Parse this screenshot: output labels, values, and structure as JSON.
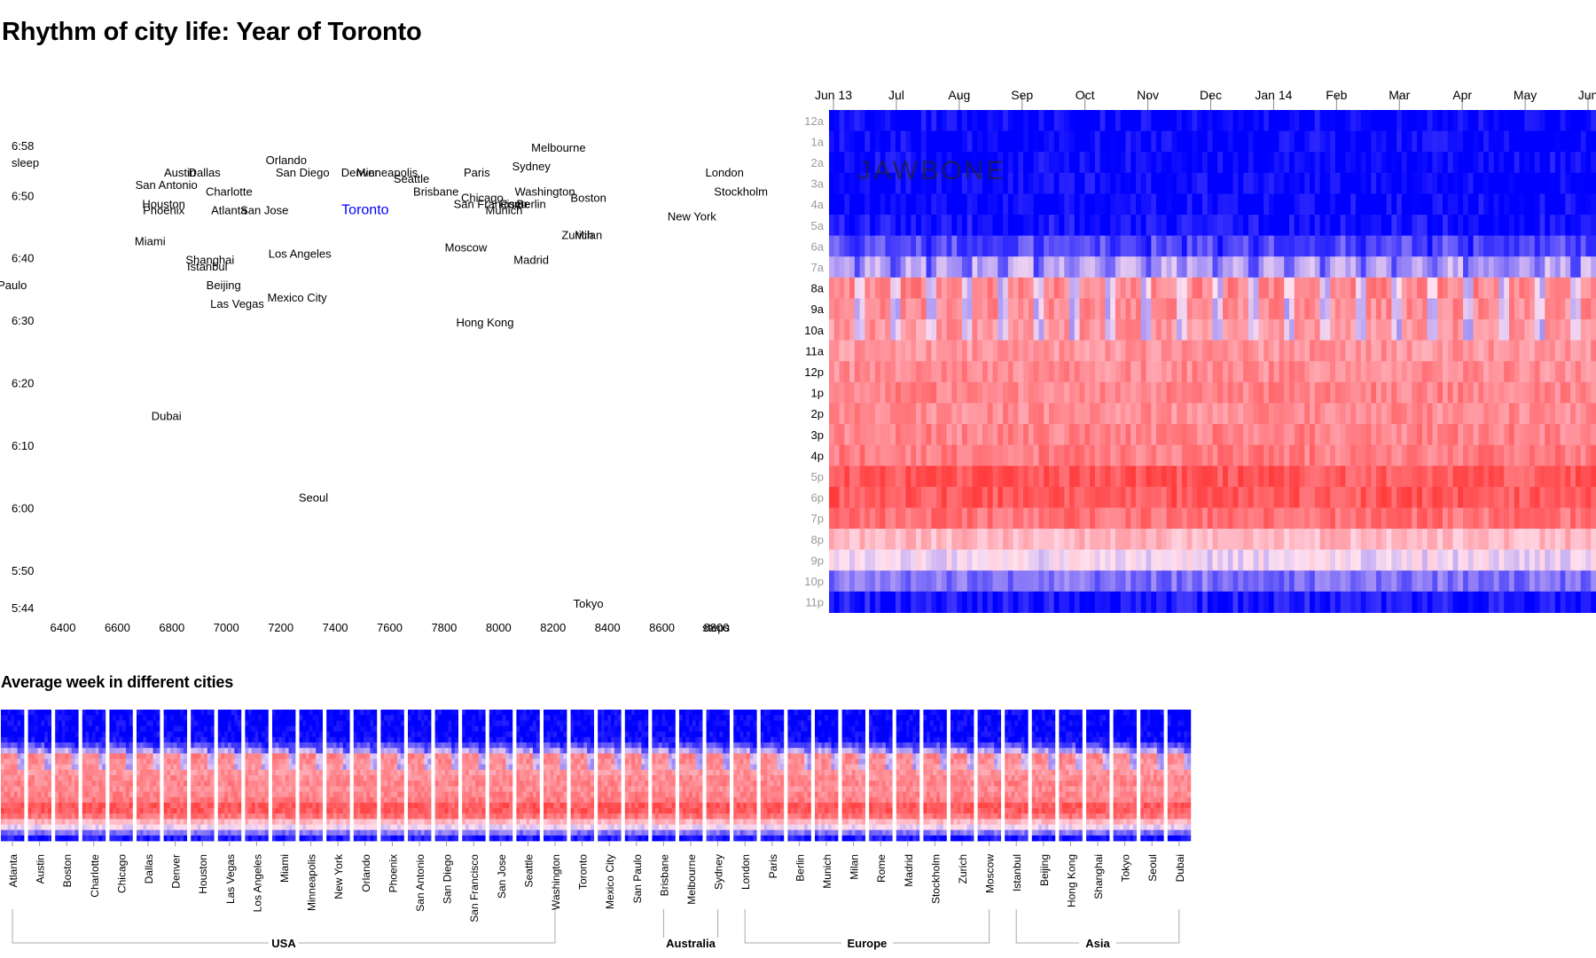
{
  "title": "Rhythm of city life: Year of Toronto",
  "week_title": "Average week in different cities",
  "colors": {
    "sleep": "#0000ff",
    "active": "#ff3030",
    "light": "#ffffff",
    "highlight": "#0000ff"
  },
  "chart_data": [
    {
      "type": "scatter",
      "x_ticks": [
        "6400",
        "6600",
        "6800",
        "7000",
        "7200",
        "7400",
        "7600",
        "7800",
        "8000",
        "8200",
        "8400",
        "8600",
        "8800"
      ],
      "x_unit": "steps",
      "y_ticks": [
        "6:58",
        "6:50",
        "6:40",
        "6:30",
        "6:20",
        "6:10",
        "6:00",
        "5:50",
        "5:44"
      ],
      "y_unit": "sleep",
      "xlim": [
        6400,
        8800
      ],
      "ylim": [
        "5:44",
        "6:58"
      ],
      "highlight": "Toronto",
      "points": [
        {
          "label": "Melbourne",
          "x": 8220,
          "y": "6:58"
        },
        {
          "label": "Orlando",
          "x": 7220,
          "y": "6:56"
        },
        {
          "label": "Austin",
          "x": 6830,
          "y": "6:54"
        },
        {
          "label": "Dallas",
          "x": 6920,
          "y": "6:54"
        },
        {
          "label": "San Diego",
          "x": 7280,
          "y": "6:54"
        },
        {
          "label": "Denver",
          "x": 7490,
          "y": "6:54"
        },
        {
          "label": "Minneapolis",
          "x": 7590,
          "y": "6:54"
        },
        {
          "label": "Paris",
          "x": 7920,
          "y": "6:54"
        },
        {
          "label": "Sydney",
          "x": 8120,
          "y": "6:55"
        },
        {
          "label": "London",
          "x": 8830,
          "y": "6:54"
        },
        {
          "label": "Seattle",
          "x": 7680,
          "y": "6:53"
        },
        {
          "label": "San Antonio",
          "x": 6780,
          "y": "6:52"
        },
        {
          "label": "Charlotte",
          "x": 7010,
          "y": "6:51"
        },
        {
          "label": "Brisbane",
          "x": 7770,
          "y": "6:51"
        },
        {
          "label": "Washington",
          "x": 8170,
          "y": "6:51"
        },
        {
          "label": "Stockholm",
          "x": 8890,
          "y": "6:51"
        },
        {
          "label": "Chicago",
          "x": 7940,
          "y": "6:50"
        },
        {
          "label": "Boston",
          "x": 8330,
          "y": "6:50"
        },
        {
          "label": "Houston",
          "x": 6770,
          "y": "6:49"
        },
        {
          "label": "San Francisco",
          "x": 7970,
          "y": "6:49"
        },
        {
          "label": "Rome",
          "x": 8060,
          "y": "6:49"
        },
        {
          "label": "Berlin",
          "x": 8120,
          "y": "6:49"
        },
        {
          "label": "Phoenix",
          "x": 6770,
          "y": "6:48"
        },
        {
          "label": "Atlanta",
          "x": 7010,
          "y": "6:48"
        },
        {
          "label": "San Jose",
          "x": 7140,
          "y": "6:48"
        },
        {
          "label": "Toronto",
          "x": 7510,
          "y": "6:48"
        },
        {
          "label": "Munich",
          "x": 8020,
          "y": "6:48"
        },
        {
          "label": "New York",
          "x": 8710,
          "y": "6:47"
        },
        {
          "label": "Zurich",
          "x": 8290,
          "y": "6:44"
        },
        {
          "label": "Milan",
          "x": 8330,
          "y": "6:44"
        },
        {
          "label": "Miami",
          "x": 6720,
          "y": "6:43"
        },
        {
          "label": "Moscow",
          "x": 7880,
          "y": "6:42"
        },
        {
          "label": "Los Angeles",
          "x": 7270,
          "y": "6:41"
        },
        {
          "label": "Shanghai",
          "x": 6940,
          "y": "6:40"
        },
        {
          "label": "Madrid",
          "x": 8120,
          "y": "6:40"
        },
        {
          "label": "Istanbul",
          "x": 6930,
          "y": "6:39"
        },
        {
          "label": "San Paulo",
          "x": 6170,
          "y": "6:36"
        },
        {
          "label": "Beijing",
          "x": 6990,
          "y": "6:36"
        },
        {
          "label": "Mexico City",
          "x": 7260,
          "y": "6:34"
        },
        {
          "label": "Las Vegas",
          "x": 7040,
          "y": "6:33"
        },
        {
          "label": "Hong Kong",
          "x": 7950,
          "y": "6:30"
        },
        {
          "label": "Dubai",
          "x": 6780,
          "y": "6:15"
        },
        {
          "label": "Seoul",
          "x": 7320,
          "y": "6:02"
        },
        {
          "label": "Tokyo",
          "x": 8330,
          "y": "5:45"
        }
      ]
    },
    {
      "type": "heatmap",
      "x_labels": [
        "Jun 13",
        "Jul",
        "Aug",
        "Sep",
        "Oct",
        "Nov",
        "Dec",
        "Jan 14",
        "Feb",
        "Mar",
        "Apr",
        "May",
        "Jun"
      ],
      "y_labels": [
        "12a",
        "1a",
        "2a",
        "3a",
        "4a",
        "5a",
        "6a",
        "7a",
        "8a",
        "9a",
        "10a",
        "11a",
        "12p",
        "1p",
        "2p",
        "3p",
        "4p",
        "5p",
        "6p",
        "7p",
        "8p",
        "9p",
        "10p",
        "11p"
      ],
      "y_labels_bold": [
        "8a",
        "9a",
        "10a",
        "11a",
        "12p",
        "1p",
        "2p",
        "3p",
        "4p"
      ],
      "watermark": "JAWBONE"
    },
    {
      "type": "heatmap",
      "cities": [
        "Atlanta",
        "Austin",
        "Boston",
        "Charlotte",
        "Chicago",
        "Dallas",
        "Denver",
        "Houston",
        "Las Vegas",
        "Los Angeles",
        "Miami",
        "Minneapolis",
        "New York",
        "Orlando",
        "Phoenix",
        "San Antonio",
        "San Diego",
        "San Francisco",
        "San Jose",
        "Seattle",
        "Washington",
        "Toronto",
        "Mexico City",
        "San Paulo",
        "Brisbane",
        "Melbourne",
        "Sydney",
        "London",
        "Paris",
        "Berlin",
        "Munich",
        "Milan",
        "Rome",
        "Madrid",
        "Stockholm",
        "Zurich",
        "Moscow",
        "Istanbul",
        "Beijing",
        "Hong Kong",
        "Shanghai",
        "Tokyo",
        "Seoul",
        "Dubai"
      ],
      "groups": [
        {
          "name": "USA",
          "first": "Atlanta",
          "last": "Washington"
        },
        {
          "name": "Australia",
          "first": "Brisbane",
          "last": "Sydney"
        },
        {
          "name": "Europe",
          "first": "London",
          "last": "Moscow"
        },
        {
          "name": "Asia",
          "first": "Istanbul",
          "last": "Dubai"
        }
      ]
    }
  ]
}
